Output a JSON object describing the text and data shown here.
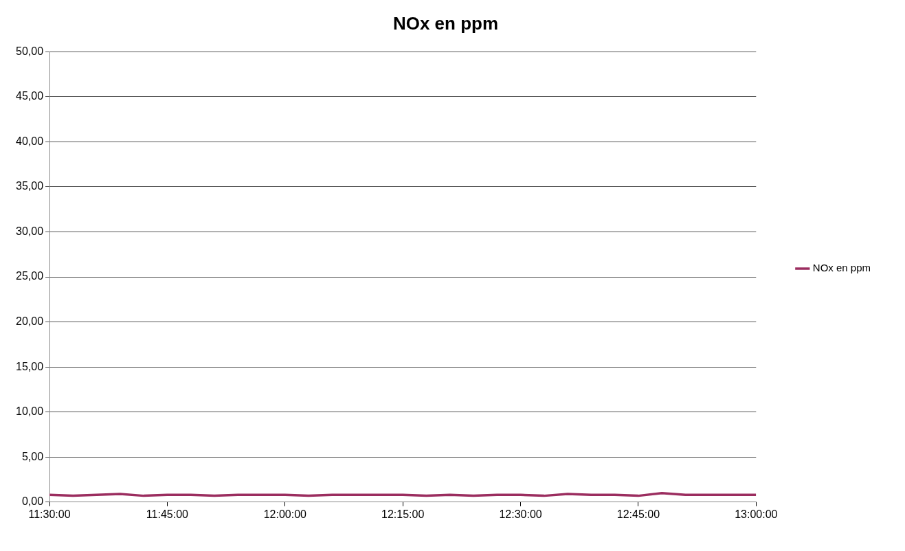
{
  "chart_data": {
    "type": "line",
    "title": "NOx en ppm",
    "x": [
      11.5,
      11.55,
      11.6,
      11.65,
      11.7,
      11.75,
      11.8,
      11.85,
      11.9,
      11.95,
      12,
      12.05,
      12.1,
      12.15,
      12.2,
      12.25,
      12.3,
      12.35,
      12.4,
      12.45,
      12.5,
      12.55,
      12.6,
      12.65,
      12.7,
      12.75,
      12.8,
      12.85,
      12.9,
      12.95,
      13
    ],
    "series": [
      {
        "name": "NOx en ppm",
        "color": "#9b2d5f",
        "values": [
          0.8,
          0.7,
          0.8,
          0.9,
          0.7,
          0.8,
          0.8,
          0.7,
          0.8,
          0.8,
          0.8,
          0.7,
          0.8,
          0.8,
          0.8,
          0.8,
          0.7,
          0.8,
          0.7,
          0.8,
          0.8,
          0.7,
          0.9,
          0.8,
          0.8,
          0.7,
          1.0,
          0.8,
          0.8,
          0.8,
          0.8
        ]
      }
    ],
    "xlim": [
      11.5,
      13
    ],
    "xticks": [
      {
        "value": 11.5,
        "label": "11:30:00"
      },
      {
        "value": 11.75,
        "label": "11:45:00"
      },
      {
        "value": 12,
        "label": "12:00:00"
      },
      {
        "value": 12.25,
        "label": "12:15:00"
      },
      {
        "value": 12.5,
        "label": "12:30:00"
      },
      {
        "value": 12.75,
        "label": "12:45:00"
      },
      {
        "value": 13,
        "label": "13:00:00"
      }
    ],
    "ylim": [
      0,
      50
    ],
    "yticks": [
      {
        "value": 0,
        "label": "0,00"
      },
      {
        "value": 5,
        "label": "5,00"
      },
      {
        "value": 10,
        "label": "10,00"
      },
      {
        "value": 15,
        "label": "15,00"
      },
      {
        "value": 20,
        "label": "20,00"
      },
      {
        "value": 25,
        "label": "25,00"
      },
      {
        "value": 30,
        "label": "30,00"
      },
      {
        "value": 35,
        "label": "35,00"
      },
      {
        "value": 40,
        "label": "40,00"
      },
      {
        "value": 45,
        "label": "45,00"
      },
      {
        "value": 50,
        "label": "50,00"
      }
    ],
    "grid": "y",
    "legend": "right",
    "marker": "none",
    "line_style": "solid"
  }
}
